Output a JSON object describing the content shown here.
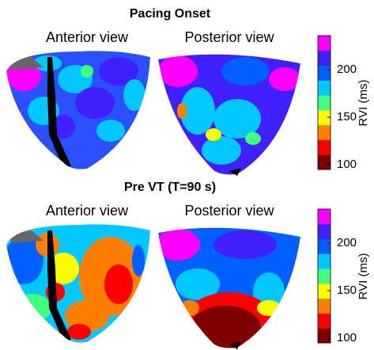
{
  "panels": [
    {
      "title": "Pacing Onset",
      "views": [
        "Anterior view",
        "Posterior view"
      ],
      "colorbar": {
        "label": "RVI (ms)",
        "lim": [
          95,
          236
        ],
        "ticks": [
          100,
          150,
          200
        ],
        "colors": [
          "#800000",
          "#ff0000",
          "#ff8000",
          "#ffff00",
          "#40ff80",
          "#00c8ff",
          "#0060ff",
          "#4020ff",
          "#ff00ff"
        ]
      }
    },
    {
      "title": "Pre VT (T=90 s)",
      "views": [
        "Anterior view",
        "Posterior view"
      ],
      "colorbar": {
        "label": "RVI (ms)",
        "lim": [
          95,
          236
        ],
        "ticks": [
          100,
          150,
          200
        ],
        "colors": [
          "#800000",
          "#ff0000",
          "#ff8000",
          "#ffff00",
          "#40ff80",
          "#00c8ff",
          "#0060ff",
          "#4020ff",
          "#ff00ff"
        ]
      }
    }
  ]
}
